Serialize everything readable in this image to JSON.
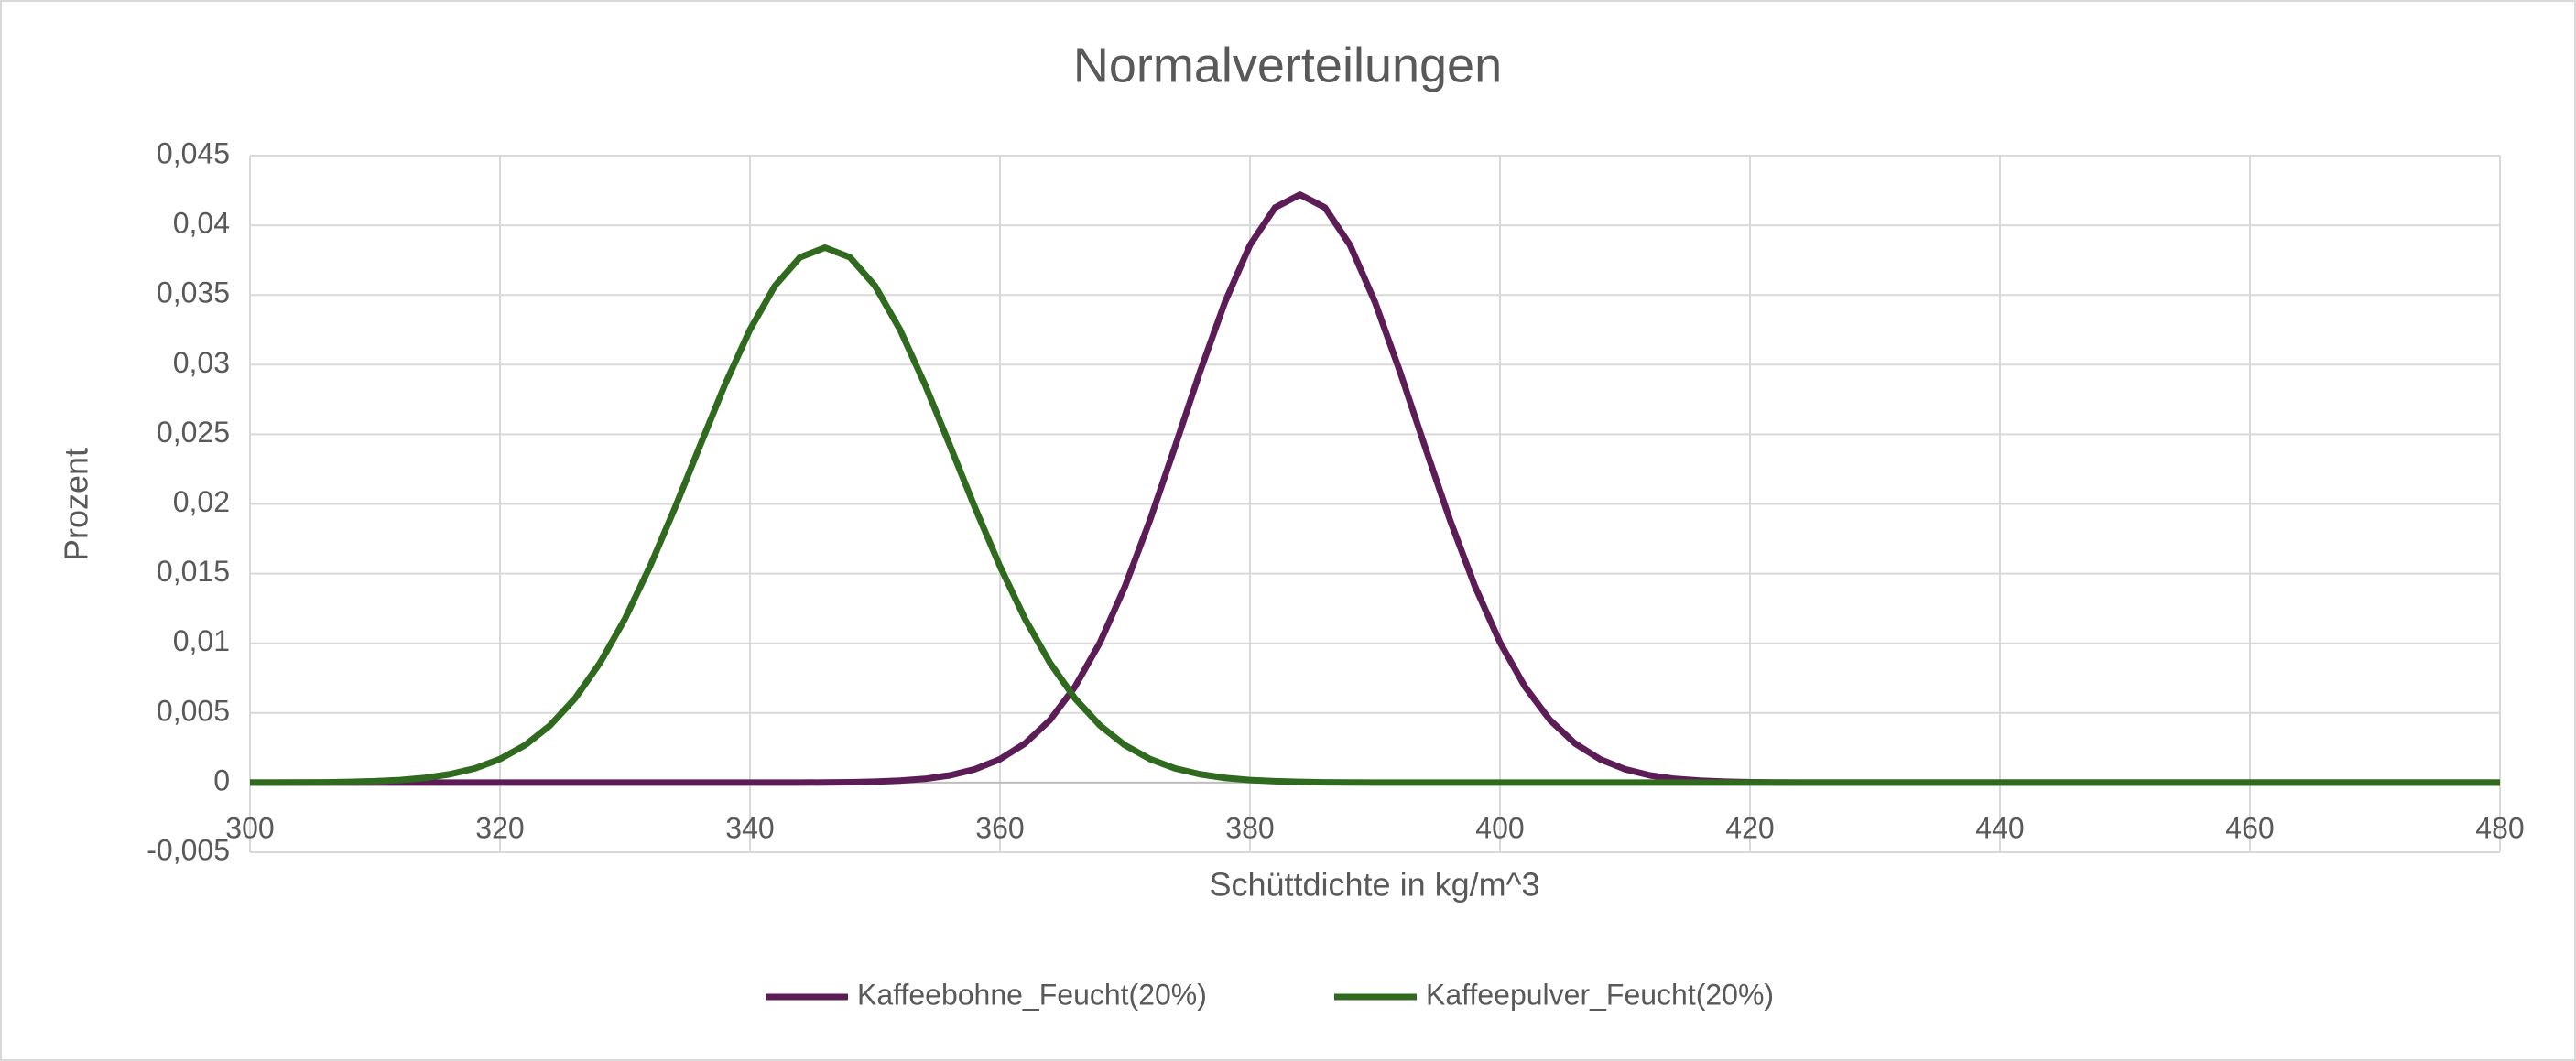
{
  "chart_data": {
    "type": "line",
    "title": "Normalverteilungen",
    "x_label": "Schüttdichte in kg/m^3",
    "y_label": "Prozent",
    "x": [
      300,
      302,
      304,
      306,
      308,
      310,
      312,
      314,
      316,
      318,
      320,
      322,
      324,
      326,
      328,
      330,
      332,
      334,
      336,
      338,
      340,
      342,
      344,
      346,
      348,
      350,
      352,
      354,
      356,
      358,
      360,
      362,
      364,
      366,
      368,
      370,
      372,
      374,
      376,
      378,
      380,
      382,
      384,
      386,
      388,
      390,
      392,
      394,
      396,
      398,
      400,
      402,
      404,
      406,
      408,
      410,
      412,
      414,
      416,
      418,
      420,
      422,
      424,
      426,
      428,
      430,
      432,
      434,
      436,
      438,
      440,
      442,
      444,
      446,
      448,
      450,
      452,
      454,
      456,
      458,
      460,
      462,
      464,
      466,
      468,
      470,
      472,
      474,
      476,
      478,
      480
    ],
    "series": [
      {
        "name": "Kaffeebohne_Feucht(20%)",
        "color": "#5c1d57",
        "values": [
          0,
          0,
          0,
          0,
          0,
          0,
          0,
          0,
          0,
          0,
          0,
          0,
          0,
          0,
          0,
          0,
          0,
          0,
          0,
          0,
          0,
          0,
          0,
          1e-05,
          3e-05,
          7e-05,
          0.00014,
          0.00027,
          0.00052,
          0.00096,
          0.00168,
          0.00281,
          0.00449,
          0.00688,
          0.01006,
          0.01408,
          0.01884,
          0.02411,
          0.02949,
          0.03449,
          0.03858,
          0.04127,
          0.0422,
          0.04127,
          0.03858,
          0.03449,
          0.02949,
          0.02411,
          0.01884,
          0.01408,
          0.01006,
          0.00688,
          0.00449,
          0.00281,
          0.00168,
          0.00096,
          0.00052,
          0.00027,
          0.00014,
          7e-05,
          3e-05,
          1e-05,
          0,
          0,
          0,
          0,
          0,
          0,
          0,
          0,
          0,
          0,
          0,
          0,
          0,
          0,
          0,
          0,
          0,
          0,
          0,
          0,
          0,
          0,
          0,
          0,
          0,
          0,
          0,
          0,
          0
        ]
      },
      {
        "name": "Kaffeepulver_Feucht(20%)",
        "color": "#2f6a1f",
        "values": [
          0,
          0,
          1e-05,
          2e-05,
          5e-05,
          0.0001,
          0.00018,
          0.00034,
          0.0006,
          0.00102,
          0.00169,
          0.00268,
          0.0041,
          0.00604,
          0.00859,
          0.01176,
          0.01552,
          0.01973,
          0.02418,
          0.02857,
          0.03251,
          0.03566,
          0.0377,
          0.0384,
          0.0377,
          0.03566,
          0.03251,
          0.02857,
          0.02418,
          0.01973,
          0.01552,
          0.01176,
          0.00859,
          0.00604,
          0.0041,
          0.00268,
          0.00169,
          0.00102,
          0.0006,
          0.00034,
          0.00018,
          0.0001,
          5e-05,
          2e-05,
          1e-05,
          0,
          0,
          0,
          0,
          0,
          0,
          0,
          0,
          0,
          0,
          0,
          0,
          0,
          0,
          0,
          0,
          0,
          0,
          0,
          0,
          0,
          0,
          0,
          0,
          0,
          0,
          0,
          0,
          0,
          0,
          0,
          0,
          0,
          0,
          0,
          0,
          0,
          0,
          0,
          0,
          0,
          0,
          0,
          0,
          0,
          0
        ]
      }
    ],
    "xlim": [
      300,
      480
    ],
    "xticks": [
      300,
      320,
      340,
      360,
      380,
      400,
      420,
      440,
      460,
      480
    ],
    "ylim": [
      -0.005,
      0.045
    ],
    "yticks": [
      {
        "value": -0.005,
        "label": "-0,005"
      },
      0,
      {
        "value": 0.005,
        "label": "0,005"
      },
      {
        "value": 0.01,
        "label": "0,01"
      },
      {
        "value": 0.015,
        "label": "0,015"
      },
      {
        "value": 0.02,
        "label": "0,02"
      },
      {
        "value": 0.025,
        "label": "0,025"
      },
      {
        "value": 0.03,
        "label": "0,03"
      },
      {
        "value": 0.035,
        "label": "0,035"
      },
      {
        "value": 0.04,
        "label": "0,04"
      },
      {
        "value": 0.045,
        "label": "0,045"
      }
    ],
    "grid": true,
    "legend": "bottom"
  }
}
